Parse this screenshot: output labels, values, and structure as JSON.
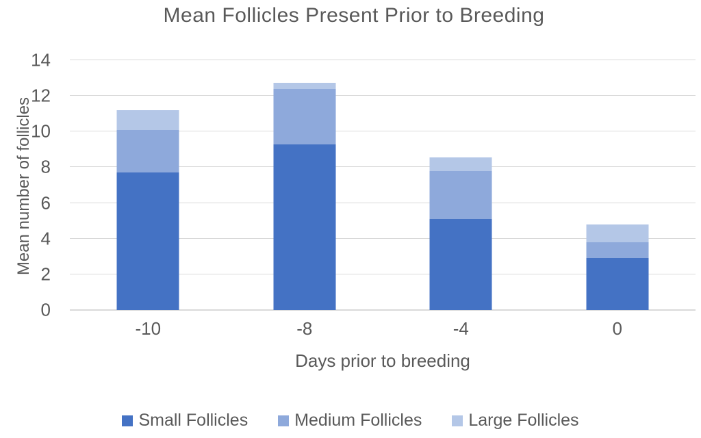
{
  "chart_data": {
    "type": "bar",
    "stacked": true,
    "title": "Mean Follicles Present Prior to Breeding",
    "xlabel": "Days prior to breeding",
    "ylabel": "Mean number of follicles",
    "categories": [
      "-10",
      "-8",
      "-4",
      "0"
    ],
    "series": [
      {
        "name": "Small Follicles",
        "color": "#4472C4",
        "values": [
          7.7,
          9.3,
          5.1,
          2.9
        ]
      },
      {
        "name": "Medium Follicles",
        "color": "#8EA9DB",
        "values": [
          2.4,
          3.1,
          2.7,
          0.9
        ]
      },
      {
        "name": "Large Follicles",
        "color": "#B4C7E7",
        "values": [
          1.1,
          0.35,
          0.75,
          1.0
        ]
      }
    ],
    "stack_totals": [
      11.2,
      12.75,
      8.55,
      4.8
    ],
    "ylim": [
      0,
      14
    ],
    "yticks": [
      0,
      2,
      4,
      6,
      8,
      10,
      12,
      14
    ],
    "grid": true,
    "legend_position": "bottom",
    "colors": {
      "text": "#595959",
      "gridline": "#D9D9D9",
      "background": "#FFFFFF"
    }
  }
}
